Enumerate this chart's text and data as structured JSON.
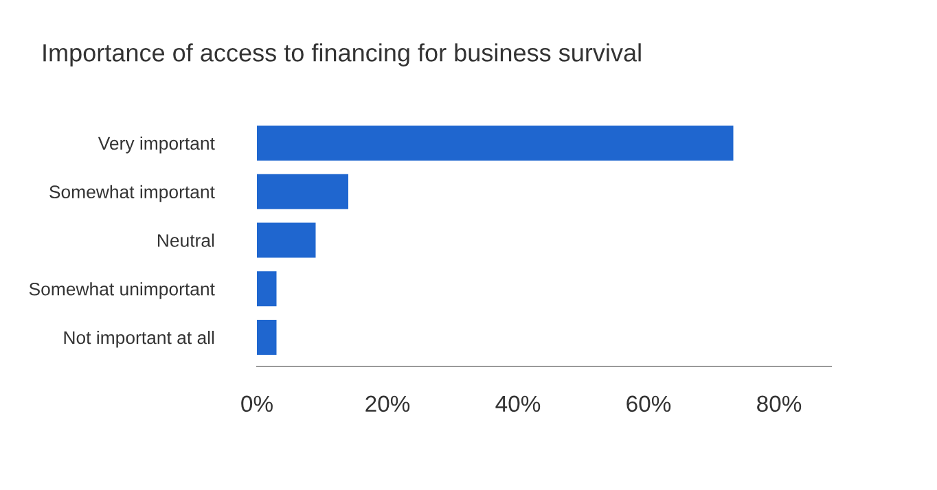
{
  "chart_data": {
    "type": "bar",
    "orientation": "horizontal",
    "title": "Importance of access to financing for business survival",
    "categories": [
      "Very important",
      "Somewhat important",
      "Neutral",
      "Somewhat unimportant",
      "Not important at all"
    ],
    "values": [
      73,
      14,
      9,
      3,
      3
    ],
    "color": "#1f66cf",
    "xlim": [
      0,
      88
    ],
    "xticks": [
      {
        "value": 0,
        "label": "0%"
      },
      {
        "value": 20,
        "label": "20%"
      },
      {
        "value": 40,
        "label": "40%"
      },
      {
        "value": 60,
        "label": "60%"
      },
      {
        "value": 80,
        "label": "80%"
      }
    ],
    "grid": false,
    "legend": false
  }
}
